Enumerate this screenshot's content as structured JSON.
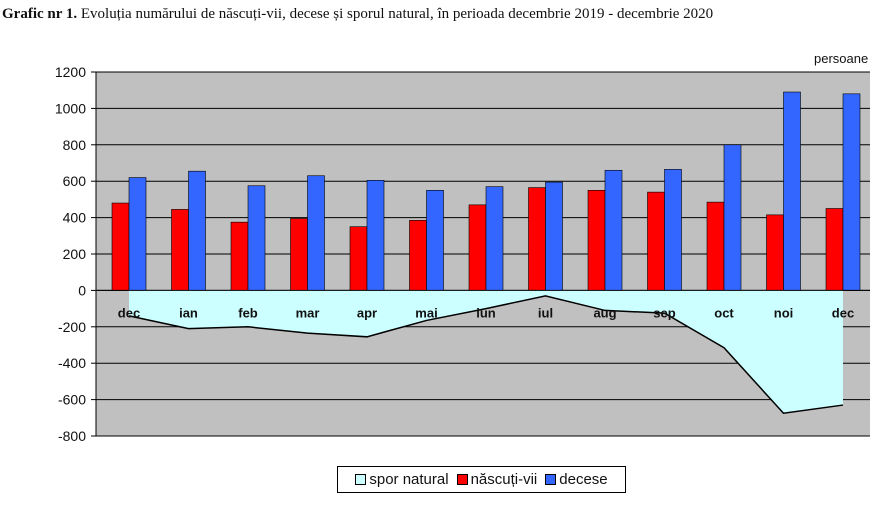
{
  "title_bold": "Grafic nr 1.",
  "title_rest": " Evoluția numărului de născuți-vii, decese și sporul natural, în perioada decembrie 2019 - decembrie 2020",
  "unit_label": "persoane",
  "colors": {
    "births": "#ff0000",
    "deaths": "#3366ff",
    "natural": "#ccffff",
    "plot_bg": "#c0c0c0",
    "grid": "#000000"
  },
  "legend": {
    "natural": "spor natural",
    "births": "născuți-vii",
    "deaths": "decese"
  },
  "chart_data": {
    "type": "bar",
    "categories": [
      "dec",
      "ian",
      "feb",
      "mar",
      "apr",
      "mai",
      "iun",
      "iul",
      "aug",
      "sep",
      "oct",
      "noi",
      "dec"
    ],
    "ylim": [
      -800,
      1200
    ],
    "yticks": [
      "1200",
      "1000",
      "800",
      "600",
      "400",
      "200",
      "0",
      "-200",
      "-400",
      "-600",
      "-800"
    ],
    "grid": true,
    "legend_position": "bottom",
    "series": [
      {
        "name": "născuți-vii",
        "type": "bar",
        "values": [
          480,
          445,
          375,
          395,
          350,
          385,
          470,
          565,
          550,
          540,
          485,
          415,
          450
        ]
      },
      {
        "name": "decese",
        "type": "bar",
        "values": [
          620,
          655,
          575,
          630,
          605,
          550,
          570,
          595,
          660,
          665,
          800,
          1090,
          1080
        ]
      },
      {
        "name": "spor natural",
        "type": "area",
        "values": [
          -140,
          -210,
          -200,
          -235,
          -255,
          -165,
          -100,
          -30,
          -110,
          -125,
          -315,
          -675,
          -630
        ]
      }
    ]
  }
}
